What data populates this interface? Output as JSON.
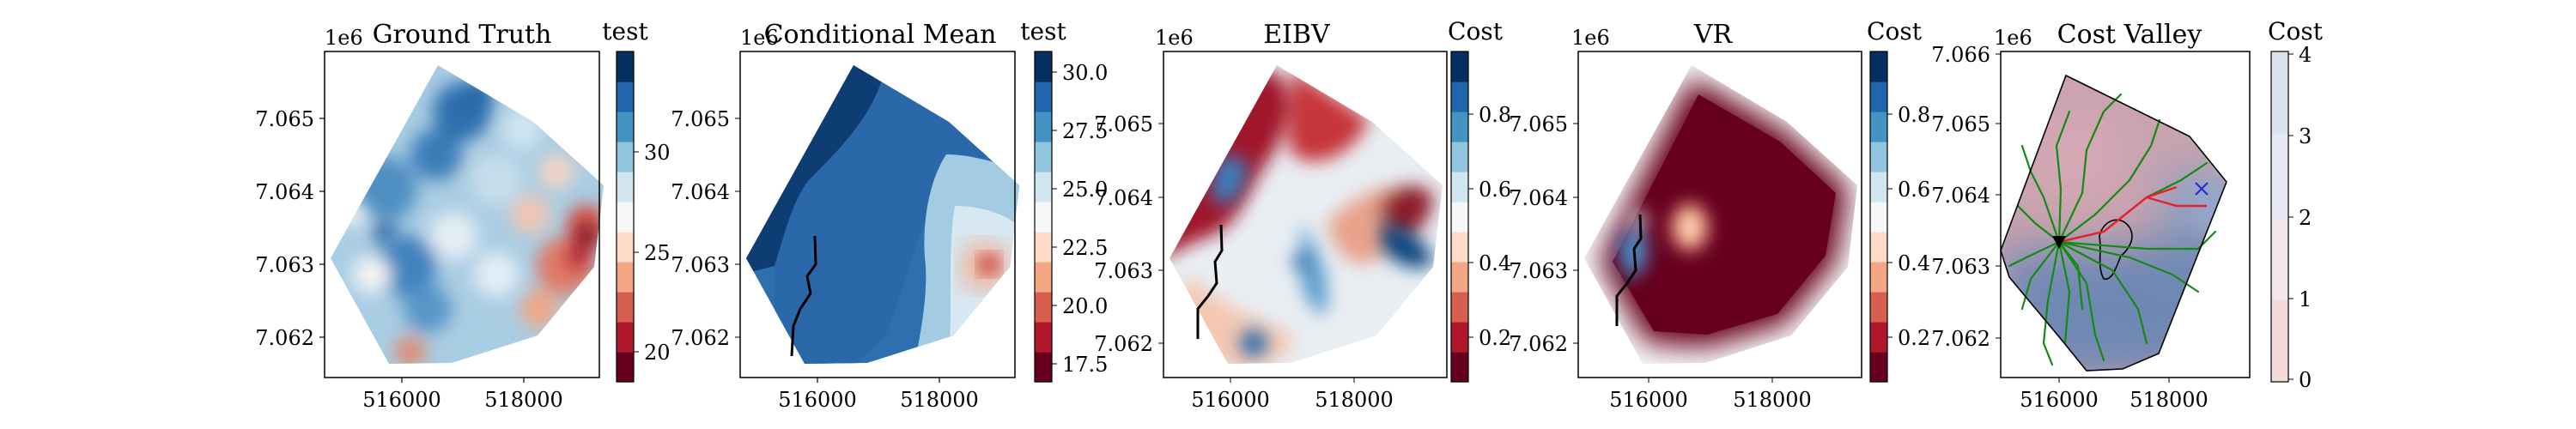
{
  "chart_data": [
    {
      "type": "heatmap",
      "title": "Ground Truth",
      "offset_text": "1e6",
      "colorbar_label": "test",
      "x_ticks": [
        "516000",
        "518000"
      ],
      "y_ticks": [
        "7.065",
        "7.064",
        "7.063",
        "7.062"
      ],
      "colorbar_ticks": [
        "30",
        "25",
        "20"
      ],
      "colorbar_colors": [
        "#67001f",
        "#b2182b",
        "#d6604d",
        "#f4a582",
        "#fddbc7",
        "#f7f7f7",
        "#d1e5f0",
        "#92c5de",
        "#4393c3",
        "#2166ac",
        "#053061"
      ],
      "xlim": [
        514800,
        519300
      ],
      "ylim": [
        7061400,
        7065800
      ],
      "region": [
        [
          516500,
          7065650
        ],
        [
          517500,
          7065100
        ],
        [
          519100,
          7064050
        ],
        [
          518300,
          7062200
        ],
        [
          517400,
          7061550
        ],
        [
          516100,
          7061550
        ],
        [
          514900,
          7063000
        ]
      ]
    },
    {
      "type": "heatmap",
      "title": "Conditional Mean",
      "offset_text": "1e6",
      "colorbar_label": "test",
      "x_ticks": [
        "516000",
        "518000"
      ],
      "y_ticks": [
        "7.065",
        "7.064",
        "7.063",
        "7.062"
      ],
      "colorbar_ticks": [
        "30.0",
        "27.5",
        "25.0",
        "22.5",
        "20.0",
        "17.5"
      ],
      "colorbar_colors": [
        "#67001f",
        "#b2182b",
        "#d6604d",
        "#f4a582",
        "#fddbc7",
        "#f7f7f7",
        "#d1e5f0",
        "#92c5de",
        "#4393c3",
        "#2166ac",
        "#053061"
      ],
      "xlim": [
        514800,
        519300
      ],
      "ylim": [
        7061400,
        7065800
      ],
      "region": [
        [
          516500,
          7065650
        ],
        [
          517500,
          7065100
        ],
        [
          519100,
          7064050
        ],
        [
          518300,
          7062200
        ],
        [
          517400,
          7061550
        ],
        [
          516100,
          7061550
        ],
        [
          514900,
          7063000
        ]
      ]
    },
    {
      "type": "heatmap",
      "title": "EIBV",
      "offset_text": "1e6",
      "colorbar_label": "Cost",
      "x_ticks": [
        "516000",
        "518000"
      ],
      "y_ticks": [
        "7.065",
        "7.064",
        "7.063",
        "7.062"
      ],
      "colorbar_ticks": [
        "0.8",
        "0.6",
        "0.4",
        "0.2"
      ],
      "colorbar_colors": [
        "#67001f",
        "#b2182b",
        "#d6604d",
        "#f4a582",
        "#fddbc7",
        "#f7f7f7",
        "#d1e5f0",
        "#92c5de",
        "#4393c3",
        "#2166ac",
        "#053061"
      ],
      "xlim": [
        514800,
        519300
      ],
      "ylim": [
        7061400,
        7065800
      ],
      "region": [
        [
          516500,
          7065650
        ],
        [
          517500,
          7065100
        ],
        [
          519100,
          7064050
        ],
        [
          518300,
          7062200
        ],
        [
          517400,
          7061550
        ],
        [
          516100,
          7061550
        ],
        [
          514900,
          7063000
        ]
      ]
    },
    {
      "type": "heatmap",
      "title": "VR",
      "offset_text": "1e6",
      "colorbar_label": "Cost",
      "x_ticks": [
        "516000",
        "518000"
      ],
      "y_ticks": [
        "7.065",
        "7.064",
        "7.063",
        "7.062"
      ],
      "colorbar_ticks": [
        "0.8",
        "0.6",
        "0.4",
        "0.2"
      ],
      "colorbar_colors": [
        "#67001f",
        "#b2182b",
        "#d6604d",
        "#f4a582",
        "#fddbc7",
        "#f7f7f7",
        "#d1e5f0",
        "#92c5de",
        "#4393c3",
        "#2166ac",
        "#053061"
      ],
      "xlim": [
        514800,
        519300
      ],
      "ylim": [
        7061400,
        7065800
      ],
      "region": [
        [
          516500,
          7065650
        ],
        [
          517500,
          7065100
        ],
        [
          519100,
          7064050
        ],
        [
          518300,
          7062200
        ],
        [
          517400,
          7061550
        ],
        [
          516100,
          7061550
        ],
        [
          514900,
          7063000
        ]
      ]
    },
    {
      "type": "heatmap",
      "title": "Cost Valley",
      "offset_text": "1e6",
      "colorbar_label": "Cost",
      "x_ticks": [
        "516000",
        "518000"
      ],
      "y_ticks": [
        "7.066",
        "7.065",
        "7.064",
        "7.063",
        "7.062"
      ],
      "colorbar_ticks": [
        "4",
        "3",
        "2",
        "1",
        "0"
      ],
      "colorbar_colors": [
        "#f5dada",
        "#f2e6e8",
        "#e6e9f2",
        "#dbe3ef"
      ],
      "xlim": [
        514800,
        519300
      ],
      "ylim": [
        7061400,
        7066100
      ],
      "region": [
        [
          516500,
          7065650
        ],
        [
          517500,
          7065100
        ],
        [
          519100,
          7064050
        ],
        [
          518300,
          7062200
        ],
        [
          517400,
          7061550
        ],
        [
          516100,
          7061550
        ],
        [
          514900,
          7063000
        ]
      ]
    }
  ],
  "colors": {
    "deep_red": "#67001f",
    "deep_blue": "#053061",
    "tree_green": "#138a13",
    "path_red": "#e8202a",
    "target_blue": "#2a2ad8"
  }
}
